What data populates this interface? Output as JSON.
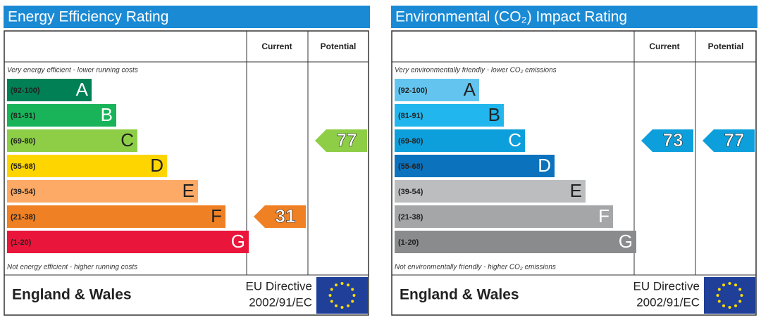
{
  "chart_data": [
    {
      "type": "epc",
      "title": "Energy Efficiency Rating",
      "columns": [
        "Current",
        "Potential"
      ],
      "top_note": "Very energy efficient - lower running costs",
      "bottom_note": "Not energy efficient - higher running costs",
      "bands": [
        {
          "range": "(92-100)",
          "letter": "A",
          "color": "#008054",
          "text_color": "#ffffff"
        },
        {
          "range": "(81-91)",
          "letter": "B",
          "color": "#19b459",
          "text_color": "#ffffff"
        },
        {
          "range": "(69-80)",
          "letter": "C",
          "color": "#8dce46",
          "text_color": "#222222"
        },
        {
          "range": "(55-68)",
          "letter": "D",
          "color": "#ffd500",
          "text_color": "#222222"
        },
        {
          "range": "(39-54)",
          "letter": "E",
          "color": "#fcaa65",
          "text_color": "#222222"
        },
        {
          "range": "(21-38)",
          "letter": "F",
          "color": "#ef8023",
          "text_color": "#222222"
        },
        {
          "range": "(1-20)",
          "letter": "G",
          "color": "#e9153b",
          "text_color": "#ffffff"
        }
      ],
      "current": 31,
      "potential": 77,
      "region": "England & Wales",
      "directive": "EU Directive",
      "directive_number": "2002/91/EC"
    },
    {
      "type": "epc",
      "title": "Environmental (CO₂) Impact Rating",
      "columns": [
        "Current",
        "Potential"
      ],
      "top_note": "Very environmentally friendly - lower CO₂ emissions",
      "bottom_note": "Not environmentally friendly - higher CO₂ emissions",
      "bands": [
        {
          "range": "(92-100)",
          "letter": "A",
          "color": "#63c5ef",
          "text_color": "#222222"
        },
        {
          "range": "(81-91)",
          "letter": "B",
          "color": "#21b6ed",
          "text_color": "#222222"
        },
        {
          "range": "(69-80)",
          "letter": "C",
          "color": "#0d9fdb",
          "text_color": "#ffffff"
        },
        {
          "range": "(55-68)",
          "letter": "D",
          "color": "#0b73be",
          "text_color": "#ffffff"
        },
        {
          "range": "(39-54)",
          "letter": "E",
          "color": "#bbbdbf",
          "text_color": "#222222"
        },
        {
          "range": "(21-38)",
          "letter": "F",
          "color": "#a4a6a8",
          "text_color": "#ffffff"
        },
        {
          "range": "(1-20)",
          "letter": "G",
          "color": "#8a8b8d",
          "text_color": "#ffffff"
        }
      ],
      "current": 73,
      "potential": 77,
      "region": "England & Wales",
      "directive": "EU Directive",
      "directive_number": "2002/91/EC"
    }
  ]
}
